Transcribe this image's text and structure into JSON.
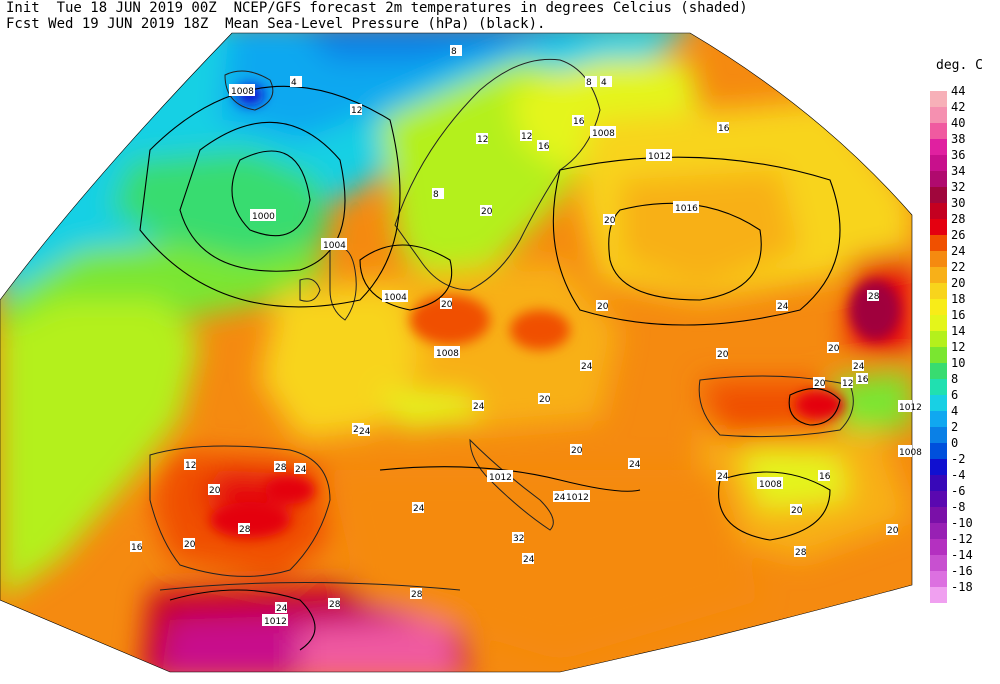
{
  "header": {
    "line1": "Init  Tue 18 JUN 2019 00Z  NCEP/GFS forecast 2m temperatures in degrees Celcius (shaded)",
    "line2": "Fcst Wed 19 JUN 2019 18Z  Mean Sea-Level Pressure (hPa) (black)."
  },
  "legend": {
    "title": "deg. C",
    "levels": [
      {
        "label": "44",
        "color": "#f7b0b8"
      },
      {
        "label": "42",
        "color": "#f590b0"
      },
      {
        "label": "40",
        "color": "#f05aa0"
      },
      {
        "label": "38",
        "color": "#e020a0"
      },
      {
        "label": "36",
        "color": "#c8108c"
      },
      {
        "label": "34",
        "color": "#b00a6e"
      },
      {
        "label": "32",
        "color": "#a0063c"
      },
      {
        "label": "30",
        "color": "#c40020"
      },
      {
        "label": "28",
        "color": "#e40010"
      },
      {
        "label": "26",
        "color": "#f05000"
      },
      {
        "label": "24",
        "color": "#f58a10"
      },
      {
        "label": "22",
        "color": "#f8b018"
      },
      {
        "label": "20",
        "color": "#f8d41c"
      },
      {
        "label": "18",
        "color": "#f8ec18"
      },
      {
        "label": "16",
        "color": "#e4f51a"
      },
      {
        "label": "14",
        "color": "#b4f01c"
      },
      {
        "label": "12",
        "color": "#7ae630"
      },
      {
        "label": "10",
        "color": "#38dc70"
      },
      {
        "label": "8",
        "color": "#20e0b0"
      },
      {
        "label": "6",
        "color": "#18d0e4"
      },
      {
        "label": "4",
        "color": "#10a8f0"
      },
      {
        "label": "2",
        "color": "#0a80e6"
      },
      {
        "label": "0",
        "color": "#0050dc"
      },
      {
        "label": "-2",
        "color": "#1010d0"
      },
      {
        "label": "-4",
        "color": "#3808b8"
      },
      {
        "label": "-6",
        "color": "#5a08b0"
      },
      {
        "label": "-8",
        "color": "#7a10a8"
      },
      {
        "label": "-10",
        "color": "#9820b4"
      },
      {
        "label": "-12",
        "color": "#b430c0"
      },
      {
        "label": "-14",
        "color": "#c850d0"
      },
      {
        "label": "-16",
        "color": "#dc70e0"
      },
      {
        "label": "-18",
        "color": "#f0a0f0"
      }
    ]
  },
  "map": {
    "projection_hint": "conic Europe",
    "pressure_labels": [
      "1008",
      "1000",
      "1004",
      "1004",
      "1008",
      "1008",
      "1012",
      "1016",
      "1012",
      "1012",
      "1008",
      "1012",
      "1008",
      "1012"
    ],
    "temperature_labels": [
      "8",
      "4",
      "8",
      "4",
      "12",
      "12",
      "16",
      "16",
      "12",
      "16",
      "20",
      "20",
      "20",
      "20",
      "24",
      "24",
      "20",
      "20",
      "16",
      "20",
      "24",
      "20",
      "20",
      "24",
      "24",
      "24",
      "28",
      "24",
      "20",
      "24",
      "28",
      "24",
      "20",
      "24",
      "32",
      "28",
      "28",
      "24",
      "16",
      "12",
      "20",
      "28",
      "24",
      "24",
      "28",
      "20",
      "16",
      "12",
      "8"
    ]
  }
}
